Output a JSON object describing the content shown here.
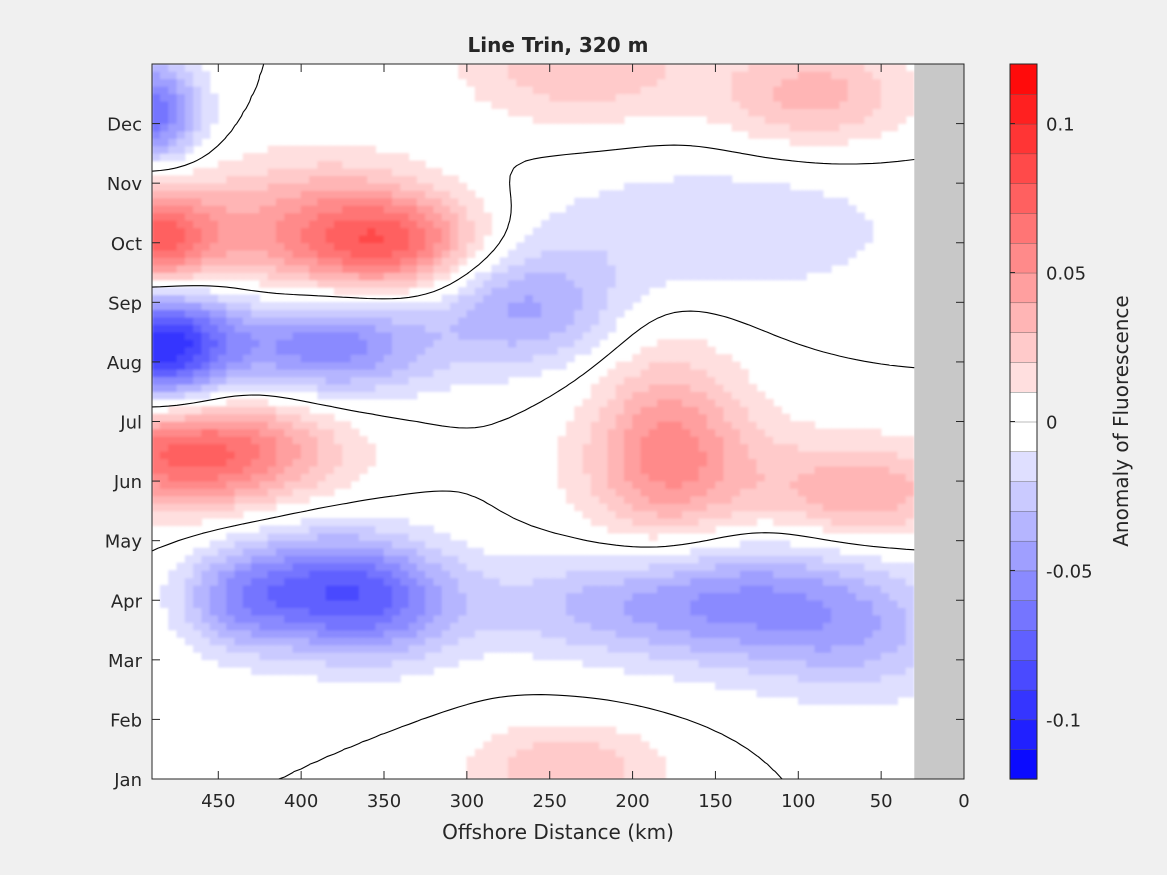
{
  "chart_data": {
    "type": "heatmap",
    "subtype": "filled-contour",
    "title": "Line Trin, 320 m",
    "xlabel": "Offshore Distance (km)",
    "ylabel": "",
    "xlim": [
      490,
      0
    ],
    "x_reversed": true,
    "data_x_extent": [
      490,
      30
    ],
    "no_data_region_x": [
      30,
      0
    ],
    "no_data_color": "#c8c8c8",
    "ylim": [
      0,
      12
    ],
    "x_ticks": [
      450,
      400,
      350,
      300,
      250,
      200,
      150,
      100,
      50,
      0
    ],
    "x_tick_labels": [
      "450",
      "400",
      "350",
      "300",
      "250",
      "200",
      "150",
      "100",
      "50",
      "0"
    ],
    "y_ticks": [
      0,
      1,
      2,
      3,
      4,
      5,
      6,
      7,
      8,
      9,
      10,
      11
    ],
    "y_tick_labels": [
      "Jan",
      "Feb",
      "Mar",
      "Apr",
      "May",
      "Jun",
      "Jul",
      "Aug",
      "Sep",
      "Oct",
      "Nov",
      "Dec"
    ],
    "colorbar": {
      "label": "Anomaly of Fluorescence",
      "range": [
        -0.12,
        0.12
      ],
      "levels_step": 0.01,
      "ticks": [
        0.1,
        0.05,
        0,
        -0.05,
        -0.1
      ],
      "tick_labels": [
        "0.1",
        "0.05",
        "0",
        "-0.05",
        "-0.1"
      ],
      "positive_color": "#ff0000",
      "negative_color": "#0000ff",
      "zero_color": "#ffffff"
    },
    "zero_contour_color": "#000000",
    "anomaly_centers": [
      {
        "x": 485,
        "y": 7.3,
        "value": -0.1,
        "sx": 30,
        "sy": 0.75
      },
      {
        "x": 385,
        "y": 7.3,
        "value": -0.06,
        "sx": 45,
        "sy": 0.6
      },
      {
        "x": 490,
        "y": 9.0,
        "value": 0.08,
        "sx": 28,
        "sy": 0.65
      },
      {
        "x": 390,
        "y": 9.2,
        "value": 0.05,
        "sx": 50,
        "sy": 0.8
      },
      {
        "x": 340,
        "y": 9.0,
        "value": 0.05,
        "sx": 35,
        "sy": 0.55
      },
      {
        "x": 465,
        "y": 5.5,
        "value": 0.08,
        "sx": 55,
        "sy": 0.65
      },
      {
        "x": 395,
        "y": 3.2,
        "value": -0.05,
        "sx": 35,
        "sy": 0.7
      },
      {
        "x": 350,
        "y": 3.0,
        "value": -0.05,
        "sx": 35,
        "sy": 0.7
      },
      {
        "x": 265,
        "y": 7.9,
        "value": -0.04,
        "sx": 40,
        "sy": 0.7
      },
      {
        "x": 490,
        "y": 11.2,
        "value": -0.07,
        "sx": 20,
        "sy": 0.6
      },
      {
        "x": 440,
        "y": 3.0,
        "value": -0.035,
        "sx": 25,
        "sy": 0.6
      },
      {
        "x": 215,
        "y": 2.9,
        "value": -0.03,
        "sx": 60,
        "sy": 0.6
      },
      {
        "x": 130,
        "y": 3.0,
        "value": -0.04,
        "sx": 50,
        "sy": 0.8
      },
      {
        "x": 60,
        "y": 2.5,
        "value": -0.03,
        "sx": 40,
        "sy": 0.8
      },
      {
        "x": 170,
        "y": 5.2,
        "value": 0.03,
        "sx": 45,
        "sy": 0.9
      },
      {
        "x": 60,
        "y": 4.8,
        "value": 0.04,
        "sx": 40,
        "sy": 0.6
      },
      {
        "x": 180,
        "y": 5.8,
        "value": 0.03,
        "sx": 30,
        "sy": 1.2
      },
      {
        "x": 150,
        "y": 9.2,
        "value": -0.02,
        "sx": 80,
        "sy": 0.8
      },
      {
        "x": 230,
        "y": 12.0,
        "value": 0.03,
        "sx": 50,
        "sy": 0.7
      },
      {
        "x": 90,
        "y": 11.5,
        "value": 0.035,
        "sx": 40,
        "sy": 0.6
      },
      {
        "x": 240,
        "y": 0.2,
        "value": 0.03,
        "sx": 40,
        "sy": 0.5
      }
    ]
  }
}
